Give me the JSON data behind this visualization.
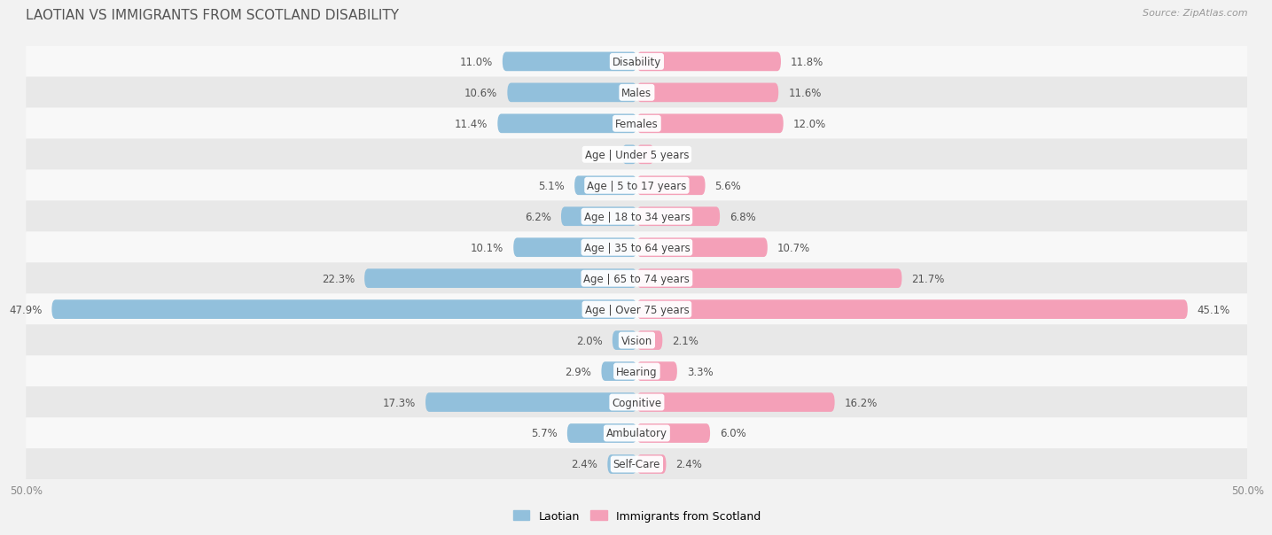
{
  "title": "LAOTIAN VS IMMIGRANTS FROM SCOTLAND DISABILITY",
  "source": "Source: ZipAtlas.com",
  "categories": [
    "Disability",
    "Males",
    "Females",
    "Age | Under 5 years",
    "Age | 5 to 17 years",
    "Age | 18 to 34 years",
    "Age | 35 to 64 years",
    "Age | 65 to 74 years",
    "Age | Over 75 years",
    "Vision",
    "Hearing",
    "Cognitive",
    "Ambulatory",
    "Self-Care"
  ],
  "laotian": [
    11.0,
    10.6,
    11.4,
    1.2,
    5.1,
    6.2,
    10.1,
    22.3,
    47.9,
    2.0,
    2.9,
    17.3,
    5.7,
    2.4
  ],
  "scotland": [
    11.8,
    11.6,
    12.0,
    1.4,
    5.6,
    6.8,
    10.7,
    21.7,
    45.1,
    2.1,
    3.3,
    16.2,
    6.0,
    2.4
  ],
  "max_val": 50.0,
  "laotian_color": "#92c0dc",
  "scotland_color": "#f4a0b8",
  "background_color": "#f2f2f2",
  "row_color_odd": "#f8f8f8",
  "row_color_even": "#e8e8e8",
  "bar_height": 0.62,
  "label_fontsize": 8.5,
  "value_fontsize": 8.5,
  "title_fontsize": 11,
  "source_fontsize": 8,
  "legend_fontsize": 9
}
